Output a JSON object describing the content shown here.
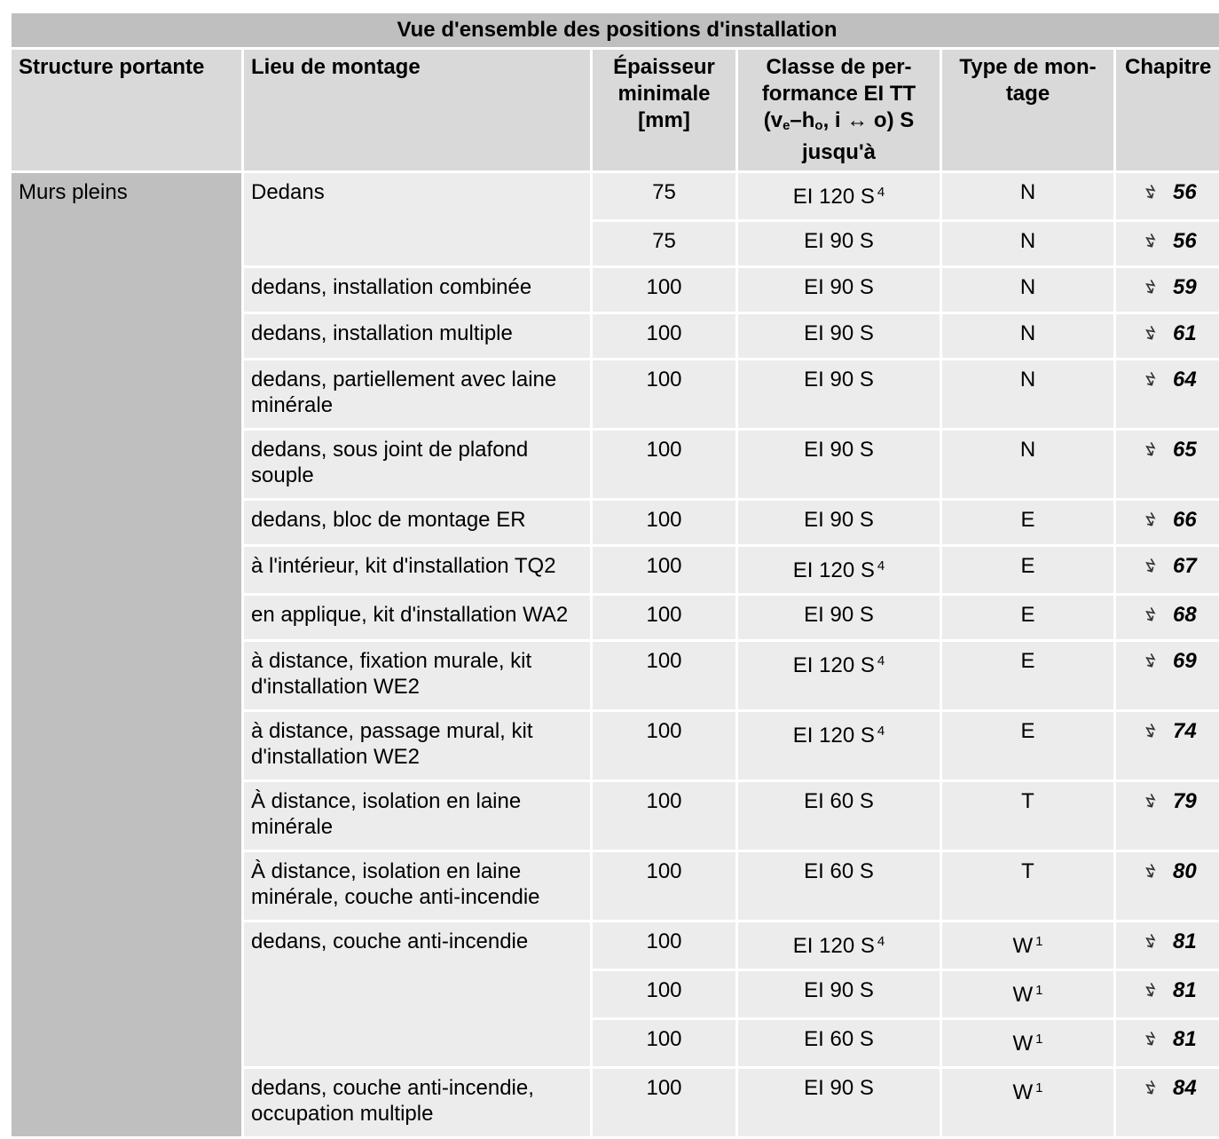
{
  "title": "Vue d'ensemble des positions d'installation",
  "headers": {
    "structure": "Structure portante",
    "lieu": "Lieu de montage",
    "epaisseur": "Épaisseur minimale [mm]",
    "classe_1": "Classe de per-formance EI TT (v",
    "classe_sub_e": "e",
    "classe_2": "–h",
    "classe_sub_o": "o",
    "classe_3": ", i ↔ o) S jusqu'à",
    "type": "Type de mon-tage",
    "chapitre": "Chapitre"
  },
  "structure_label": "Murs pleins",
  "chapter_icon": "reference-arrow-icon",
  "rows": [
    {
      "lieu": "Dedans",
      "epaisseur": "75",
      "classe": "EI 120 S",
      "classe_note": "4",
      "type": "N",
      "type_note": "",
      "chapitre": "56"
    },
    {
      "lieu": "",
      "epaisseur": "75",
      "classe": "EI 90 S",
      "classe_note": "",
      "type": "N",
      "type_note": "",
      "chapitre": "56"
    },
    {
      "lieu": "dedans, installation combinée",
      "epaisseur": "100",
      "classe": "EI 90 S",
      "classe_note": "",
      "type": "N",
      "type_note": "",
      "chapitre": "59"
    },
    {
      "lieu": "dedans, installation multiple",
      "epaisseur": "100",
      "classe": "EI 90 S",
      "classe_note": "",
      "type": "N",
      "type_note": "",
      "chapitre": "61"
    },
    {
      "lieu": "dedans, partiellement avec laine minérale",
      "epaisseur": "100",
      "classe": "EI 90 S",
      "classe_note": "",
      "type": "N",
      "type_note": "",
      "chapitre": "64"
    },
    {
      "lieu": "dedans, sous joint de plafond souple",
      "epaisseur": "100",
      "classe": "EI 90 S",
      "classe_note": "",
      "type": "N",
      "type_note": "",
      "chapitre": "65"
    },
    {
      "lieu": "dedans, bloc de montage ER",
      "epaisseur": "100",
      "classe": "EI 90 S",
      "classe_note": "",
      "type": "E",
      "type_note": "",
      "chapitre": "66"
    },
    {
      "lieu": "à l'intérieur, kit d'installation TQ2",
      "epaisseur": "100",
      "classe": "EI 120 S",
      "classe_note": "4",
      "type": "E",
      "type_note": "",
      "chapitre": "67"
    },
    {
      "lieu": "en applique, kit d'installation WA2",
      "epaisseur": "100",
      "classe": "EI 90 S",
      "classe_note": "",
      "type": "E",
      "type_note": "",
      "chapitre": "68"
    },
    {
      "lieu": "à distance, fixation murale, kit d'installation WE2",
      "epaisseur": "100",
      "classe": "EI 120 S",
      "classe_note": "4",
      "type": "E",
      "type_note": "",
      "chapitre": "69"
    },
    {
      "lieu": "à distance, passage mural, kit d'installation WE2",
      "epaisseur": "100",
      "classe": "EI 120 S",
      "classe_note": "4",
      "type": "E",
      "type_note": "",
      "chapitre": "74"
    },
    {
      "lieu": "À distance, isolation en laine minérale",
      "epaisseur": "100",
      "classe": "EI 60 S",
      "classe_note": "",
      "type": "T",
      "type_note": "",
      "chapitre": "79"
    },
    {
      "lieu": "À distance, isolation en laine minérale, couche anti-incendie",
      "epaisseur": "100",
      "classe": "EI 60 S",
      "classe_note": "",
      "type": "T",
      "type_note": "",
      "chapitre": "80"
    },
    {
      "lieu": "dedans, couche anti-incendie",
      "epaisseur": "100",
      "classe": "EI 120 S",
      "classe_note": "4",
      "type": "W",
      "type_note": "1",
      "chapitre": "81"
    },
    {
      "lieu": "",
      "epaisseur": "100",
      "classe": "EI 90 S",
      "classe_note": "",
      "type": "W",
      "type_note": "1",
      "chapitre": "81"
    },
    {
      "lieu": "",
      "epaisseur": "100",
      "classe": "EI 60 S",
      "classe_note": "",
      "type": "W",
      "type_note": "1",
      "chapitre": "81"
    },
    {
      "lieu": "dedans, couche anti-incendie, occupation multiple",
      "epaisseur": "100",
      "classe": "EI 90 S",
      "classe_note": "",
      "type": "W",
      "type_note": "1",
      "chapitre": "84"
    }
  ]
}
